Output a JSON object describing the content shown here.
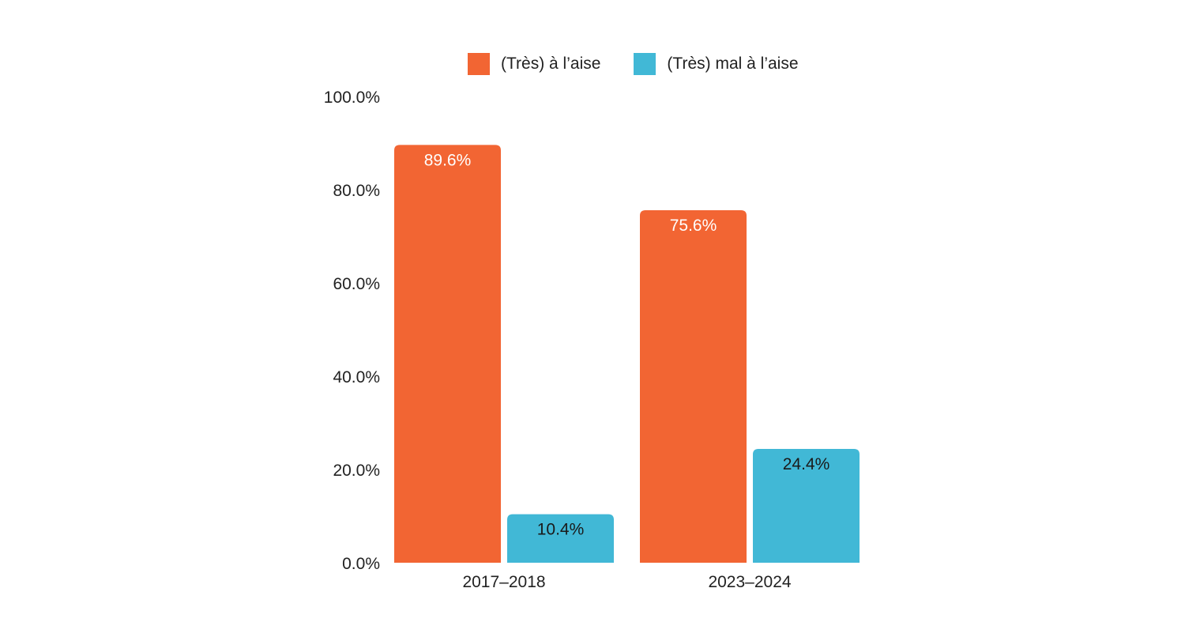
{
  "chart_data": {
    "type": "bar",
    "categories": [
      "2017–2018",
      "2023–2024"
    ],
    "series": [
      {
        "name": "(Très) à l’aise",
        "color": "#F26533",
        "label_color": "#ffffff",
        "values": [
          89.6,
          75.6
        ],
        "labels": [
          "89.6%",
          "75.6%"
        ]
      },
      {
        "name": "(Très) mal à l’aise",
        "color": "#41B8D6",
        "label_color": "#1a1a1a",
        "values": [
          10.4,
          24.4
        ],
        "labels": [
          "10.4%",
          "24.4%"
        ]
      }
    ],
    "ylim": [
      0,
      100
    ],
    "yticks": [
      0,
      20,
      40,
      60,
      80,
      100
    ],
    "ytick_labels": [
      "0.0%",
      "20.0%",
      "40.0%",
      "60.0%",
      "80.0%",
      "100.0%"
    ],
    "title": "",
    "xlabel": "",
    "ylabel": "",
    "legend_position": "top-center",
    "grid": false
  }
}
